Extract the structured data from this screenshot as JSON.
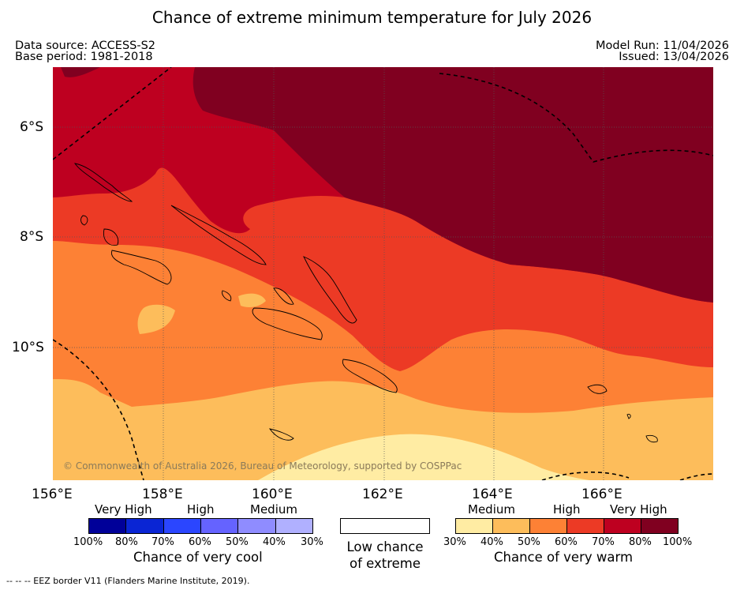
{
  "title": "Chance of extreme minimum temperature for July 2026",
  "meta": {
    "data_source": "Data source: ACCESS-S2",
    "base_period": "Base period: 1981-2018",
    "model_run": "Model Run: 11/04/2026",
    "issued": "Issued: 13/04/2026"
  },
  "map": {
    "copyright": "© Commonwealth of Australia 2026, Bureau of Meteorology, supported by COSPPac",
    "lat_labels": [
      "6°S",
      "8°S",
      "10°S"
    ],
    "lon_labels": [
      "156°E",
      "158°E",
      "160°E",
      "162°E",
      "164°E",
      "166°E"
    ]
  },
  "legend": {
    "cool": {
      "categories": [
        "Very High",
        "High",
        "Medium"
      ],
      "ticks": [
        "100%",
        "80%",
        "70%",
        "60%",
        "50%",
        "40%",
        "30%"
      ],
      "colors": [
        "#000099",
        "#0a25d4",
        "#2b46ff",
        "#6563ff",
        "#8f8cff",
        "#b0b0ff"
      ],
      "caption": "Chance of very cool"
    },
    "neutral": {
      "caption_line1": "Low chance",
      "caption_line2": "of extreme",
      "color": "#ffffff"
    },
    "warm": {
      "categories": [
        "Medium",
        "High",
        "Very High"
      ],
      "ticks": [
        "30%",
        "40%",
        "50%",
        "60%",
        "70%",
        "80%",
        "100%"
      ],
      "colors": [
        "#ffeca3",
        "#fdbd5b",
        "#fd8135",
        "#ec3a25",
        "#be0020",
        "#800020"
      ],
      "caption": "Chance of very warm"
    }
  },
  "footer": "-- -- -- EEZ border V11 (Flanders Marine Institute, 2019)."
}
